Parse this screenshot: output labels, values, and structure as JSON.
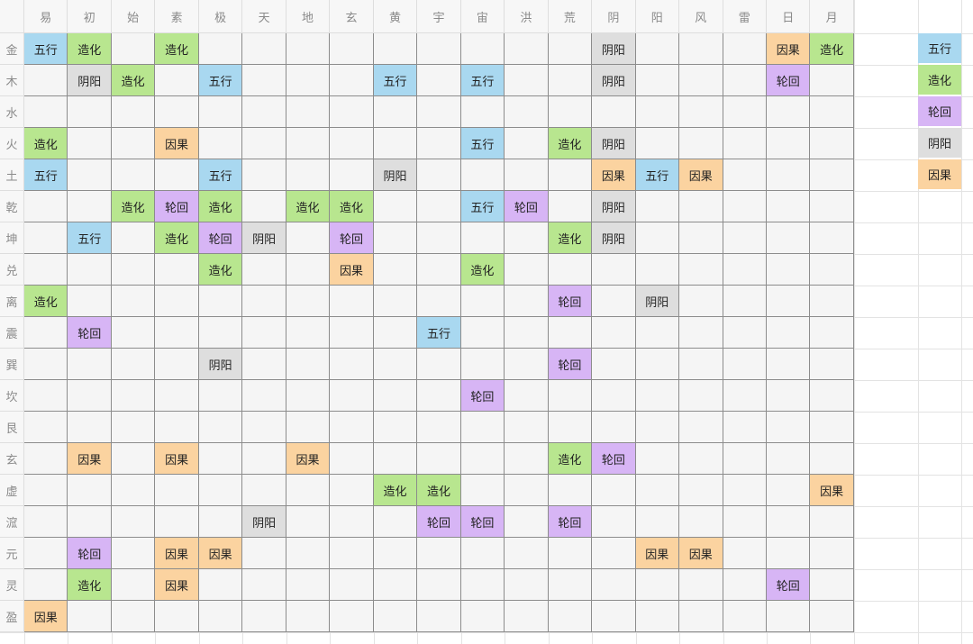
{
  "columns": [
    "易",
    "初",
    "始",
    "素",
    "极",
    "天",
    "地",
    "玄",
    "黄",
    "宇",
    "宙",
    "洪",
    "荒",
    "阴",
    "阳",
    "风",
    "雷",
    "日",
    "月"
  ],
  "rows": [
    {
      "label": "金",
      "cells": [
        "五行",
        "造化",
        "",
        "造化",
        "",
        "",
        "",
        "",
        "",
        "",
        "",
        "",
        "",
        "阴阳",
        "",
        "",
        "",
        "因果",
        "造化"
      ]
    },
    {
      "label": "木",
      "cells": [
        "",
        "阴阳",
        "造化",
        "",
        "五行",
        "",
        "",
        "",
        "五行",
        "",
        "五行",
        "",
        "",
        "阴阳",
        "",
        "",
        "",
        "轮回",
        ""
      ]
    },
    {
      "label": "水",
      "cells": [
        "",
        "",
        "",
        "",
        "",
        "",
        "",
        "",
        "",
        "",
        "",
        "",
        "",
        "",
        "",
        "",
        "",
        "",
        ""
      ]
    },
    {
      "label": "火",
      "cells": [
        "造化",
        "",
        "",
        "因果",
        "",
        "",
        "",
        "",
        "",
        "",
        "五行",
        "",
        "造化",
        "阴阳",
        "",
        "",
        "",
        "",
        ""
      ]
    },
    {
      "label": "土",
      "cells": [
        "五行",
        "",
        "",
        "",
        "五行",
        "",
        "",
        "",
        "阴阳",
        "",
        "",
        "",
        "",
        "因果",
        "五行",
        "因果",
        "",
        "",
        ""
      ]
    },
    {
      "label": "乾",
      "cells": [
        "",
        "",
        "造化",
        "轮回",
        "造化",
        "",
        "造化",
        "造化",
        "",
        "",
        "五行",
        "轮回",
        "",
        "阴阳",
        "",
        "",
        "",
        "",
        ""
      ]
    },
    {
      "label": "坤",
      "cells": [
        "",
        "五行",
        "",
        "造化",
        "轮回",
        "阴阳",
        "",
        "轮回",
        "",
        "",
        "",
        "",
        "造化",
        "阴阳",
        "",
        "",
        "",
        "",
        ""
      ]
    },
    {
      "label": "兑",
      "cells": [
        "",
        "",
        "",
        "",
        "造化",
        "",
        "",
        "因果",
        "",
        "",
        "造化",
        "",
        "",
        "",
        "",
        "",
        "",
        "",
        ""
      ]
    },
    {
      "label": "离",
      "cells": [
        "造化",
        "",
        "",
        "",
        "",
        "",
        "",
        "",
        "",
        "",
        "",
        "",
        "轮回",
        "",
        "阴阳",
        "",
        "",
        "",
        ""
      ]
    },
    {
      "label": "震",
      "cells": [
        "",
        "轮回",
        "",
        "",
        "",
        "",
        "",
        "",
        "",
        "五行",
        "",
        "",
        "",
        "",
        "",
        "",
        "",
        "",
        ""
      ]
    },
    {
      "label": "巽",
      "cells": [
        "",
        "",
        "",
        "",
        "阴阳",
        "",
        "",
        "",
        "",
        "",
        "",
        "",
        "轮回",
        "",
        "",
        "",
        "",
        "",
        ""
      ]
    },
    {
      "label": "坎",
      "cells": [
        "",
        "",
        "",
        "",
        "",
        "",
        "",
        "",
        "",
        "",
        "轮回",
        "",
        "",
        "",
        "",
        "",
        "",
        "",
        ""
      ]
    },
    {
      "label": "艮",
      "cells": [
        "",
        "",
        "",
        "",
        "",
        "",
        "",
        "",
        "",
        "",
        "",
        "",
        "",
        "",
        "",
        "",
        "",
        "",
        ""
      ]
    },
    {
      "label": "玄",
      "cells": [
        "",
        "因果",
        "",
        "因果",
        "",
        "",
        "因果",
        "",
        "",
        "",
        "",
        "",
        "造化",
        "轮回",
        "",
        "",
        "",
        "",
        ""
      ]
    },
    {
      "label": "虚",
      "cells": [
        "",
        "",
        "",
        "",
        "",
        "",
        "",
        "",
        "造化",
        "造化",
        "",
        "",
        "",
        "",
        "",
        "",
        "",
        "",
        "因果"
      ]
    },
    {
      "label": "溛",
      "cells": [
        "",
        "",
        "",
        "",
        "",
        "阴阳",
        "",
        "",
        "",
        "轮回",
        "轮回",
        "",
        "轮回",
        "",
        "",
        "",
        "",
        "",
        ""
      ]
    },
    {
      "label": "元",
      "cells": [
        "",
        "轮回",
        "",
        "因果",
        "因果",
        "",
        "",
        "",
        "",
        "",
        "",
        "",
        "",
        "",
        "因果",
        "因果",
        "",
        "",
        ""
      ]
    },
    {
      "label": "灵",
      "cells": [
        "",
        "造化",
        "",
        "因果",
        "",
        "",
        "",
        "",
        "",
        "",
        "",
        "",
        "",
        "",
        "",
        "",
        "",
        "轮回",
        ""
      ]
    },
    {
      "label": "盈",
      "cells": [
        "因果",
        "",
        "",
        "",
        "",
        "",
        "",
        "",
        "",
        "",
        "",
        "",
        "",
        "",
        "",
        "",
        "",
        "",
        ""
      ]
    }
  ],
  "legend": [
    "五行",
    "造化",
    "轮回",
    "阴阳",
    "因果"
  ],
  "colors": {
    "五行": "#a9d8f0",
    "造化": "#b8e68f",
    "轮回": "#d7b5f5",
    "阴阳": "#dedede",
    "因果": "#fbd3a0"
  }
}
